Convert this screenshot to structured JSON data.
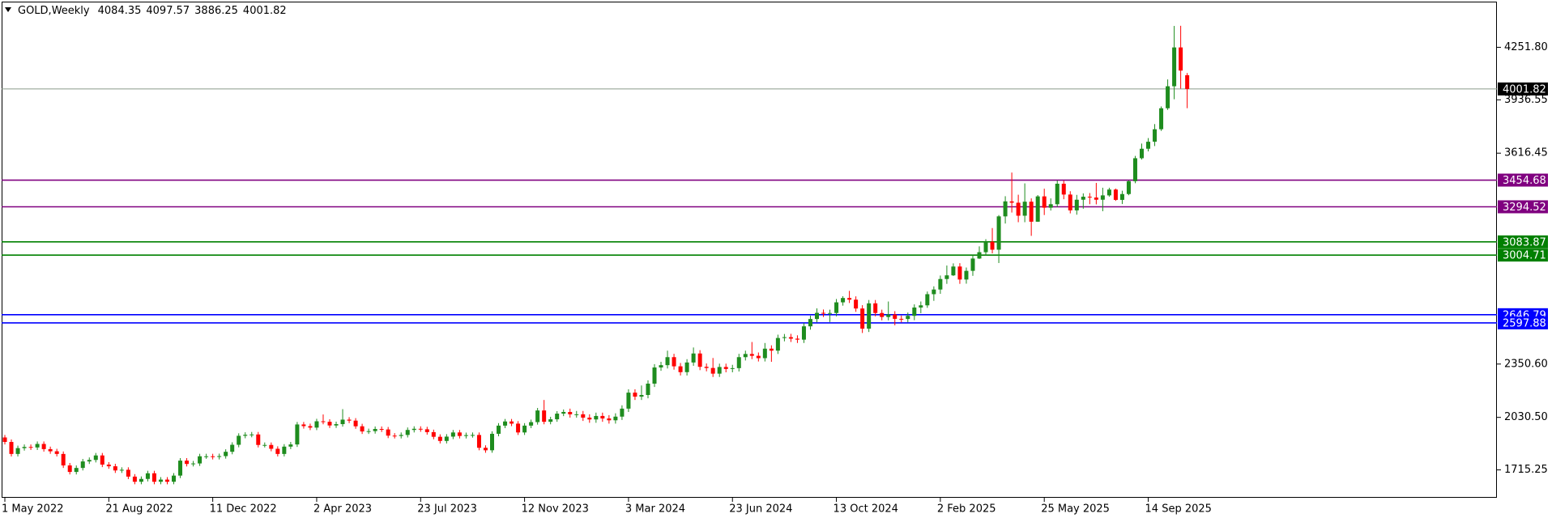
{
  "chart_data": {
    "type": "candlestick",
    "symbol": "GOLD,Weekly",
    "categories": [
      "1 May 2022",
      null,
      null,
      null,
      null,
      null,
      null,
      null,
      null,
      null,
      null,
      null,
      null,
      null,
      null,
      null,
      "21 Aug 2022",
      null,
      null,
      null,
      null,
      null,
      null,
      null,
      null,
      null,
      null,
      null,
      null,
      null,
      null,
      null,
      "11 Dec 2022",
      null,
      null,
      null,
      null,
      null,
      null,
      null,
      null,
      null,
      null,
      null,
      null,
      null,
      null,
      null,
      "2 Apr 2023",
      null,
      null,
      null,
      null,
      null,
      null,
      null,
      null,
      null,
      null,
      null,
      null,
      null,
      null,
      null,
      "23 Jul 2023",
      null,
      null,
      null,
      null,
      null,
      null,
      null,
      null,
      null,
      null,
      null,
      null,
      null,
      null,
      null,
      "12 Nov 2023",
      null,
      null,
      null,
      null,
      null,
      null,
      null,
      null,
      null,
      null,
      null,
      null,
      null,
      null,
      null,
      "3 Mar 2024",
      null,
      null,
      null,
      null,
      null,
      null,
      null,
      null,
      null,
      null,
      null,
      null,
      null,
      null,
      null,
      "23 Jun 2024",
      null,
      null,
      null,
      null,
      null,
      null,
      null,
      null,
      null,
      null,
      null,
      null,
      null,
      null,
      null,
      "13 Oct 2024",
      null,
      null,
      null,
      null,
      null,
      null,
      null,
      null,
      null,
      null,
      null,
      null,
      null,
      null,
      null,
      "2 Feb 2025",
      null,
      null,
      null,
      null,
      null,
      null,
      null,
      null,
      null,
      null,
      null,
      null,
      null,
      null,
      null,
      "25 May 2025",
      null,
      null,
      null,
      null,
      null,
      null,
      null,
      null,
      null,
      null,
      null,
      null,
      null,
      null,
      null,
      "14 Sep 2025",
      null,
      null,
      null,
      null,
      null,
      null
    ],
    "open": [
      1910,
      1883,
      1811,
      1846,
      1853,
      1850,
      1871,
      1840,
      1827,
      1811,
      1742,
      1703,
      1727,
      1766,
      1775,
      1802,
      1747,
      1737,
      1712,
      1716,
      1675,
      1644,
      1661,
      1695,
      1644,
      1657,
      1644,
      1681,
      1771,
      1751,
      1754,
      1797,
      1797,
      1793,
      1798,
      1824,
      1866,
      1920,
      1926,
      1928,
      1865,
      1865,
      1842,
      1811,
      1855,
      1868,
      1988,
      1978,
      1969,
      2007,
      2004,
      1982,
      1990,
      2017,
      2011,
      1977,
      1946,
      1948,
      1961,
      1958,
      1921,
      1919,
      1925,
      1955,
      1962,
      1959,
      1942,
      1914,
      1889,
      1915,
      1940,
      1919,
      1924,
      1925,
      1848,
      1833,
      1932,
      1981,
      2006,
      1993,
      1940,
      1981,
      2002,
      2072,
      2004,
      2019,
      2053,
      2063,
      2049,
      2049,
      2029,
      2018,
      2039,
      2024,
      2013,
      2035,
      2083,
      2179,
      2155,
      2165,
      2233,
      2330,
      2344,
      2392,
      2337,
      2302,
      2360,
      2414,
      2334,
      2327,
      2293,
      2333,
      2321,
      2326,
      2392,
      2411,
      2400,
      2386,
      2443,
      2431,
      2507,
      2512,
      2503,
      2497,
      2577,
      2621,
      2658,
      2653,
      2657,
      2721,
      2747,
      2737,
      2684,
      2563,
      2715,
      2657,
      2633,
      2648,
      2622,
      2621,
      2640,
      2690,
      2703,
      2770,
      2798,
      2861,
      2883,
      2936,
      2858,
      2910,
      2984,
      3022,
      3085,
      3037,
      3237,
      3327,
      3319,
      3241,
      3325,
      3205,
      3357,
      3289,
      3310,
      3433,
      3368,
      3273,
      3337,
      3355,
      3350,
      3337,
      3363,
      3398,
      3336,
      3371,
      3448,
      3586,
      3643,
      3685,
      3760,
      3886,
      4018,
      4251,
      4084.35
    ],
    "high": [
      1925,
      1898,
      1861,
      1868,
      1868,
      1886,
      1886,
      1855,
      1842,
      1826,
      1757,
      1742,
      1781,
      1790,
      1817,
      1817,
      1762,
      1752,
      1731,
      1731,
      1690,
      1676,
      1710,
      1710,
      1672,
      1672,
      1696,
      1786,
      1786,
      1769,
      1812,
      1812,
      1812,
      1813,
      1839,
      1881,
      1935,
      1941,
      1943,
      1943,
      1880,
      1880,
      1857,
      1870,
      1883,
      2003,
      2003,
      1993,
      2022,
      2048,
      2019,
      2005,
      2080,
      2032,
      2026,
      1992,
      1963,
      1976,
      1976,
      1973,
      1936,
      1940,
      1970,
      1977,
      1977,
      1974,
      1957,
      1929,
      1930,
      1955,
      1955,
      1939,
      1940,
      1940,
      1863,
      1947,
      1996,
      2021,
      2021,
      2008,
      1996,
      2017,
      2087,
      2135,
      2034,
      2068,
      2078,
      2083,
      2069,
      2069,
      2049,
      2059,
      2059,
      2044,
      2055,
      2103,
      2199,
      2199,
      2222,
      2253,
      2350,
      2364,
      2431,
      2412,
      2357,
      2380,
      2450,
      2434,
      2354,
      2387,
      2353,
      2353,
      2346,
      2412,
      2431,
      2483,
      2420,
      2477,
      2463,
      2527,
      2531,
      2532,
      2523,
      2597,
      2641,
      2685,
      2678,
      2677,
      2741,
      2758,
      2790,
      2757,
      2704,
      2735,
      2735,
      2677,
      2726,
      2668,
      2642,
      2660,
      2709,
      2726,
      2786,
      2817,
      2882,
      2942,
      2955,
      2956,
      2930,
      3004,
      3057,
      3100,
      3167,
      3245,
      3358,
      3500,
      3367,
      3435,
      3345,
      3365,
      3403,
      3345,
      3452,
      3451,
      3388,
      3366,
      3375,
      3377,
      3438,
      3409,
      3409,
      3404,
      3391,
      3453,
      3600,
      3674,
      3707,
      3791,
      3897,
      4059,
      4380,
      4381,
      4097.57
    ],
    "low": [
      1868,
      1796,
      1796,
      1831,
      1835,
      1835,
      1825,
      1812,
      1796,
      1727,
      1688,
      1688,
      1712,
      1751,
      1760,
      1732,
      1722,
      1697,
      1697,
      1660,
      1629,
      1629,
      1646,
      1629,
      1629,
      1629,
      1629,
      1666,
      1736,
      1736,
      1739,
      1782,
      1778,
      1778,
      1783,
      1809,
      1851,
      1905,
      1911,
      1850,
      1850,
      1827,
      1796,
      1796,
      1840,
      1853,
      1963,
      1954,
      1954,
      1989,
      1967,
      1967,
      1975,
      1996,
      1962,
      1931,
      1931,
      1933,
      1943,
      1906,
      1904,
      1904,
      1910,
      1940,
      1944,
      1927,
      1899,
      1874,
      1874,
      1900,
      1904,
      1904,
      1909,
      1833,
      1818,
      1818,
      1917,
      1966,
      1978,
      1925,
      1925,
      1966,
      1987,
      1989,
      1989,
      2004,
      2038,
      2029,
      2029,
      2009,
      1998,
      1998,
      2004,
      1993,
      1993,
      2015,
      2063,
      2135,
      2135,
      2145,
      2213,
      2310,
      2324,
      2317,
      2282,
      2282,
      2340,
      2314,
      2307,
      2273,
      2273,
      2301,
      2301,
      2306,
      2372,
      2380,
      2366,
      2366,
      2364,
      2411,
      2487,
      2483,
      2477,
      2477,
      2557,
      2601,
      2633,
      2603,
      2637,
      2701,
      2717,
      2664,
      2537,
      2543,
      2637,
      2613,
      2613,
      2583,
      2601,
      2601,
      2614,
      2656,
      2688,
      2730,
      2772,
      2832,
      2879,
      2832,
      2833,
      2880,
      2982,
      3000,
      3015,
      2957,
      3194,
      3260,
      3202,
      3202,
      3120,
      3204,
      3245,
      3272,
      3293,
      3340,
      3255,
      3247,
      3283,
      3310,
      3309,
      3268,
      3355,
      3330,
      3311,
      3364,
      3436,
      3578,
      3627,
      3659,
      3750,
      3876,
      3940,
      4004,
      3886.25
    ],
    "close": [
      1883,
      1811,
      1846,
      1853,
      1850,
      1871,
      1840,
      1827,
      1811,
      1742,
      1703,
      1727,
      1766,
      1775,
      1802,
      1747,
      1737,
      1712,
      1716,
      1675,
      1644,
      1661,
      1695,
      1644,
      1657,
      1644,
      1681,
      1771,
      1751,
      1754,
      1797,
      1797,
      1793,
      1798,
      1824,
      1866,
      1920,
      1926,
      1928,
      1865,
      1865,
      1842,
      1811,
      1855,
      1868,
      1988,
      1978,
      1969,
      2007,
      2004,
      1982,
      1990,
      2017,
      2011,
      1977,
      1946,
      1948,
      1961,
      1958,
      1921,
      1919,
      1925,
      1955,
      1962,
      1959,
      1942,
      1914,
      1889,
      1915,
      1940,
      1919,
      1924,
      1925,
      1848,
      1833,
      1932,
      1981,
      2006,
      1993,
      1940,
      1981,
      2002,
      2072,
      2004,
      2019,
      2053,
      2063,
      2049,
      2049,
      2029,
      2018,
      2039,
      2024,
      2013,
      2035,
      2083,
      2179,
      2155,
      2165,
      2233,
      2330,
      2344,
      2392,
      2337,
      2302,
      2360,
      2414,
      2334,
      2327,
      2293,
      2333,
      2321,
      2326,
      2392,
      2411,
      2400,
      2386,
      2443,
      2431,
      2507,
      2512,
      2503,
      2497,
      2577,
      2621,
      2658,
      2653,
      2657,
      2721,
      2747,
      2737,
      2684,
      2563,
      2715,
      2657,
      2633,
      2648,
      2622,
      2621,
      2640,
      2690,
      2703,
      2770,
      2798,
      2861,
      2883,
      2936,
      2858,
      2910,
      2984,
      3022,
      3085,
      3037,
      3237,
      3327,
      3319,
      3241,
      3325,
      3205,
      3357,
      3289,
      3310,
      3433,
      3368,
      3273,
      3337,
      3355,
      3350,
      3337,
      3363,
      3398,
      3336,
      3371,
      3448,
      3586,
      3643,
      3685,
      3760,
      3886,
      4018,
      4251,
      4112,
      4001.82
    ],
    "up_color": "#1e8c1e",
    "down_color": "#ff0000",
    "ylim": [
      1548,
      4526
    ],
    "yticks": [
      1715.25,
      {
        "value": 2030.5,
        "label": "2030.50"
      },
      {
        "value": 2350.6,
        "label": "2350.60"
      },
      3616.45,
      3936.55,
      {
        "value": 4251.8,
        "label": "4251.80"
      }
    ],
    "levels": [
      {
        "value": 3454.68,
        "color": "#800080"
      },
      {
        "value": 3294.52,
        "color": "#800080"
      },
      {
        "value": 3083.87,
        "color": "#008000"
      },
      {
        "value": 3004.71,
        "color": "#008000"
      },
      {
        "value": 2646.79,
        "color": "#0000ff"
      },
      {
        "value": 2597.88,
        "color": "#0000ff"
      }
    ],
    "price_line_color": "#8a9a8a"
  }
}
